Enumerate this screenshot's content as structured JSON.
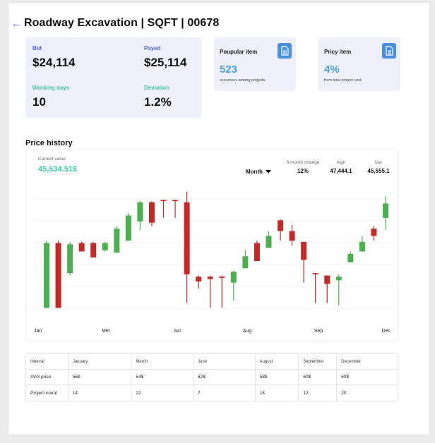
{
  "header": {
    "title": "Roadway Excavation | SQFT | 00678"
  },
  "summary": {
    "bid_label": "Bid",
    "bid_value": "$24,114",
    "payed_label": "Payed",
    "payed_value": "$25,114",
    "working_days_label": "Working days",
    "working_days_value": "10",
    "deviation_label": "Deviation",
    "deviation_value": "1.2%"
  },
  "popular_item": {
    "label": "Poupular item",
    "value": "523",
    "sub": "occurnces among projects",
    "icon": "document-icon"
  },
  "pricy_item": {
    "label": "Pricy item",
    "value": "4%",
    "sub": "from total project cost",
    "icon": "document-icon"
  },
  "price_history": {
    "section_title": "Price history",
    "current_label": "Current value",
    "current_value": "45,634.51$",
    "period": "Month",
    "change_label": "6 month change",
    "change_value": "12%",
    "high_label": "high",
    "high_value": "47,444.1",
    "low_label": "low",
    "low_value": "45,555.1"
  },
  "colors": {
    "up": "#4caf50",
    "down": "#c62828",
    "accent": "#5565e8",
    "teal": "#43c7a8"
  },
  "chart_data": {
    "type": "candlestick",
    "xlabels": [
      "Jan",
      "Mer",
      "Jun",
      "Aug",
      "Sep",
      "Dec"
    ],
    "ylim": [
      0,
      100
    ],
    "grid": true,
    "candles": [
      {
        "o": 8,
        "c": 62,
        "h": 64,
        "l": 8
      },
      {
        "o": 62,
        "c": 8,
        "h": 64,
        "l": 8
      },
      {
        "o": 37,
        "c": 61,
        "h": 63,
        "l": 35
      },
      {
        "o": 62,
        "c": 55,
        "h": 63,
        "l": 55
      },
      {
        "o": 62,
        "c": 50,
        "h": 63,
        "l": 50
      },
      {
        "o": 56,
        "c": 62,
        "h": 63,
        "l": 55
      },
      {
        "o": 54,
        "c": 74,
        "h": 76,
        "l": 54
      },
      {
        "o": 64,
        "c": 85,
        "h": 87,
        "l": 64
      },
      {
        "o": 80,
        "c": 96,
        "h": 97,
        "l": 73
      },
      {
        "o": 96,
        "c": 79,
        "h": 97,
        "l": 76
      },
      {
        "o": 98,
        "c": 97,
        "h": 98,
        "l": 83
      },
      {
        "o": 98,
        "c": 97,
        "h": 98,
        "l": 83
      },
      {
        "o": 96,
        "c": 36,
        "h": 105,
        "l": 12
      },
      {
        "o": 34,
        "c": 30,
        "h": 35,
        "l": 24
      },
      {
        "o": 34,
        "c": 32,
        "h": 35,
        "l": 8
      },
      {
        "o": 34,
        "c": 33,
        "h": 35,
        "l": 8
      },
      {
        "o": 29,
        "c": 38,
        "h": 39,
        "l": 14
      },
      {
        "o": 41,
        "c": 51,
        "h": 56,
        "l": 41
      },
      {
        "o": 62,
        "c": 47,
        "h": 64,
        "l": 47
      },
      {
        "o": 58,
        "c": 68,
        "h": 72,
        "l": 58
      },
      {
        "o": 81,
        "c": 72,
        "h": 82,
        "l": 64
      },
      {
        "o": 72,
        "c": 64,
        "h": 77,
        "l": 60
      },
      {
        "o": 63,
        "c": 48,
        "h": 63,
        "l": 29
      },
      {
        "o": 37,
        "c": 36,
        "h": 37,
        "l": 12
      },
      {
        "o": 35,
        "c": 28,
        "h": 35,
        "l": 12
      },
      {
        "o": 31,
        "c": 34,
        "h": 36,
        "l": 10
      },
      {
        "o": 46,
        "c": 53,
        "h": 55,
        "l": 46
      },
      {
        "o": 55,
        "c": 63,
        "h": 68,
        "l": 55
      },
      {
        "o": 74,
        "c": 68,
        "h": 76,
        "l": 64
      },
      {
        "o": 83,
        "c": 95,
        "h": 101,
        "l": 73
      }
    ]
  },
  "table": {
    "headers": [
      "Interval",
      "January",
      "Merch",
      "June",
      "August",
      "September",
      "December"
    ],
    "rows": [
      [
        "AVG price",
        "56$",
        "54$",
        "62$",
        "58$",
        "60$",
        "60$"
      ],
      [
        "Project count",
        "14",
        "22",
        "7",
        "18",
        "12",
        "20"
      ]
    ]
  }
}
